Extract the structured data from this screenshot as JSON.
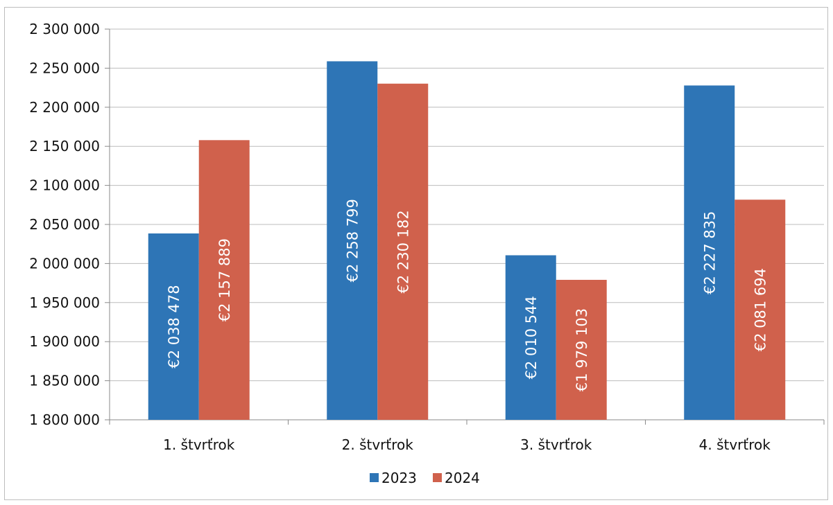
{
  "chart_data": {
    "type": "bar",
    "title": "",
    "xlabel": "",
    "ylabel": "",
    "categories": [
      "1. štvrťrok",
      "2. štvrťrok",
      "3. štvrťrok",
      "4. štvrťrok"
    ],
    "series": [
      {
        "name": "2023",
        "color": "#2e75b6",
        "values": [
          2038478,
          2258799,
          2010544,
          2227835
        ],
        "labels": [
          "€2 038 478",
          "€2 258 799",
          "€2 010 544",
          "€2 227 835"
        ]
      },
      {
        "name": "2024",
        "color": "#d0614c",
        "values": [
          2157889,
          2230182,
          1979103,
          2081694
        ],
        "labels": [
          "€2 157 889",
          "€2 230 182",
          "€1 979 103",
          "€2 081 694"
        ]
      }
    ],
    "ylim": [
      1800000,
      2300000
    ],
    "yticks": [
      1800000,
      1850000,
      1900000,
      1950000,
      2000000,
      2050000,
      2100000,
      2150000,
      2200000,
      2250000,
      2300000
    ],
    "ytick_labels": [
      "1 800 000",
      "1 850 000",
      "1 900 000",
      "1 950 000",
      "2 000 000",
      "2 050 000",
      "2 100 000",
      "2 150 000",
      "2 200 000",
      "2 250 000",
      "2 300 000"
    ],
    "grid": true,
    "legend_position": "bottom"
  }
}
